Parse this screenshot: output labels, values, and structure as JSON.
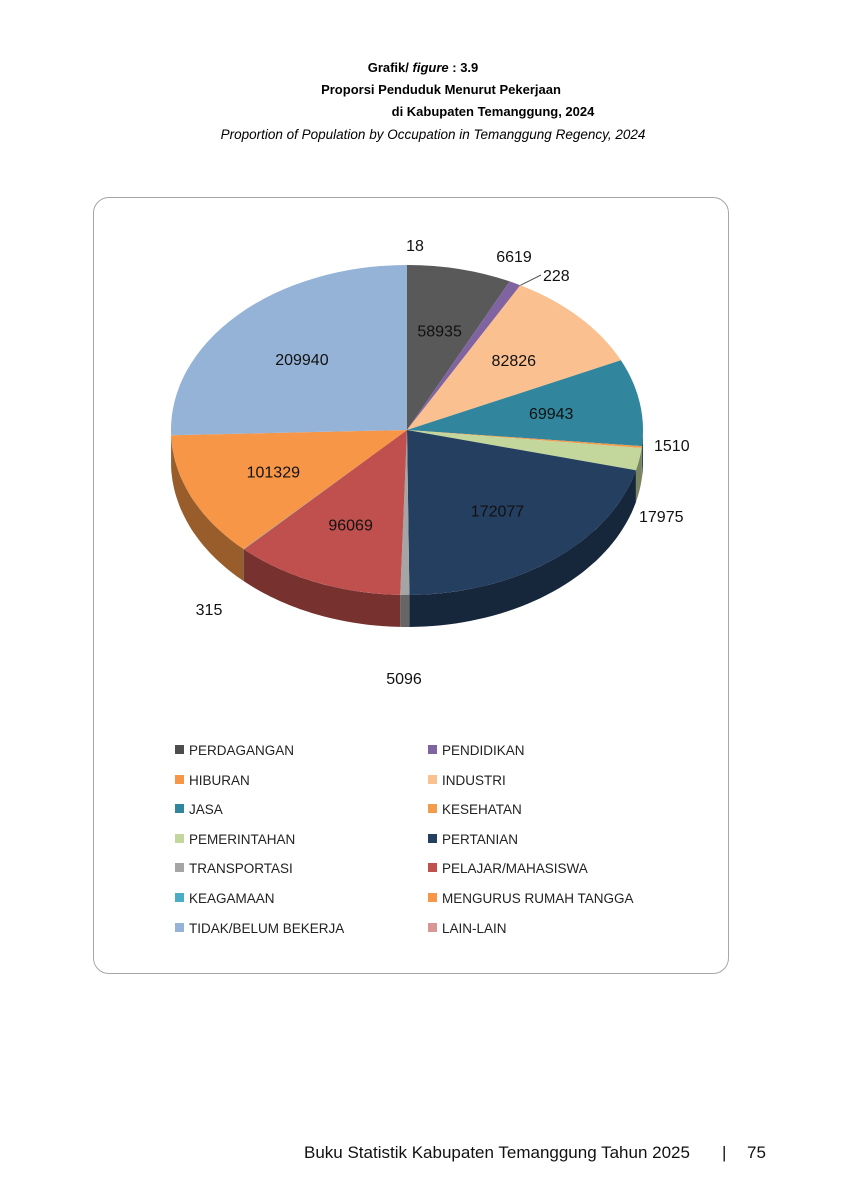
{
  "header": {
    "line1_prefix": "Grafik/",
    "line1_italic": "figure",
    "line1_suffix": ": 3.9",
    "title": "Proporsi Penduduk Menurut Pekerjaan",
    "subtitle": "di Kabupaten Temanggung, 2024",
    "title_en": "Proportion of Population by Occupation in Temanggung Regency, 2024"
  },
  "chart_data": {
    "type": "pie",
    "style": "3d-exploded-tilted",
    "legend_position": "bottom",
    "categories": [
      "PERDAGANGAN",
      "PENDIDIKAN",
      "HIBURAN",
      "INDUSTRI",
      "JASA",
      "KESEHATAN",
      "PEMERINTAHAN",
      "PERTANIAN",
      "TRANSPORTASI",
      "PELAJAR/MAHASISWA",
      "KEAGAMAAN",
      "MENGURUS RUMAH TANGGA",
      "TIDAK/BELUM BEKERJA",
      "LAIN-LAIN"
    ],
    "values": [
      58935,
      6619,
      228,
      82826,
      69943,
      1510,
      17975,
      172077,
      5096,
      96069,
      315,
      101329,
      209940,
      18
    ],
    "colors": [
      "#595959",
      "#8064a2",
      "#f79646",
      "#fac090",
      "#31859c",
      "#f29b4b",
      "#c3d69b",
      "#243f60",
      "#a5a5a5",
      "#c0504d",
      "#4bacc6",
      "#f79646",
      "#95b3d7",
      "#d99694"
    ],
    "slice_order": [
      "PERDAGANGAN",
      "PENDIDIKAN",
      "HIBURAN",
      "INDUSTRI",
      "JASA",
      "KESEHATAN",
      "PEMERINTAHAN",
      "PERTANIAN",
      "TRANSPORTASI",
      "PELAJAR/MAHASISWA",
      "KEAGAMAAN",
      "MENGURUS RUMAH TANGGA",
      "TIDAK/BELUM BEKERJA",
      "LAIN-LAIN"
    ],
    "data_labels": [
      "58935",
      "6619",
      "228",
      "82826",
      "69943",
      "1510",
      "17975",
      "172077",
      "5096",
      "96069",
      "315",
      "101329",
      "209940",
      "18"
    ]
  },
  "legend": [
    {
      "label": "PERDAGANGAN",
      "color": "#4d4d4d"
    },
    {
      "label": "PENDIDIKAN",
      "color": "#8064a2"
    },
    {
      "label": "HIBURAN",
      "color": "#f79646"
    },
    {
      "label": "INDUSTRI",
      "color": "#fac090"
    },
    {
      "label": "JASA",
      "color": "#31859c"
    },
    {
      "label": "KESEHATAN",
      "color": "#f29b4b"
    },
    {
      "label": "PEMERINTAHAN",
      "color": "#c3d69b"
    },
    {
      "label": "PERTANIAN",
      "color": "#243f60"
    },
    {
      "label": "TRANSPORTASI",
      "color": "#a5a5a5"
    },
    {
      "label": "PELAJAR/MAHASISWA",
      "color": "#c0504d"
    },
    {
      "label": "KEAGAMAAN",
      "color": "#4bacc6"
    },
    {
      "label": "MENGURUS RUMAH TANGGA",
      "color": "#f79646"
    },
    {
      "label": "TIDAK/BELUM BEKERJA",
      "color": "#95b3d7"
    },
    {
      "label": "LAIN-LAIN",
      "color": "#d99694"
    }
  ],
  "footer": {
    "text": "Buku Statistik Kabupaten Temanggung Tahun 2025",
    "separator": "|",
    "page_number": "75"
  }
}
